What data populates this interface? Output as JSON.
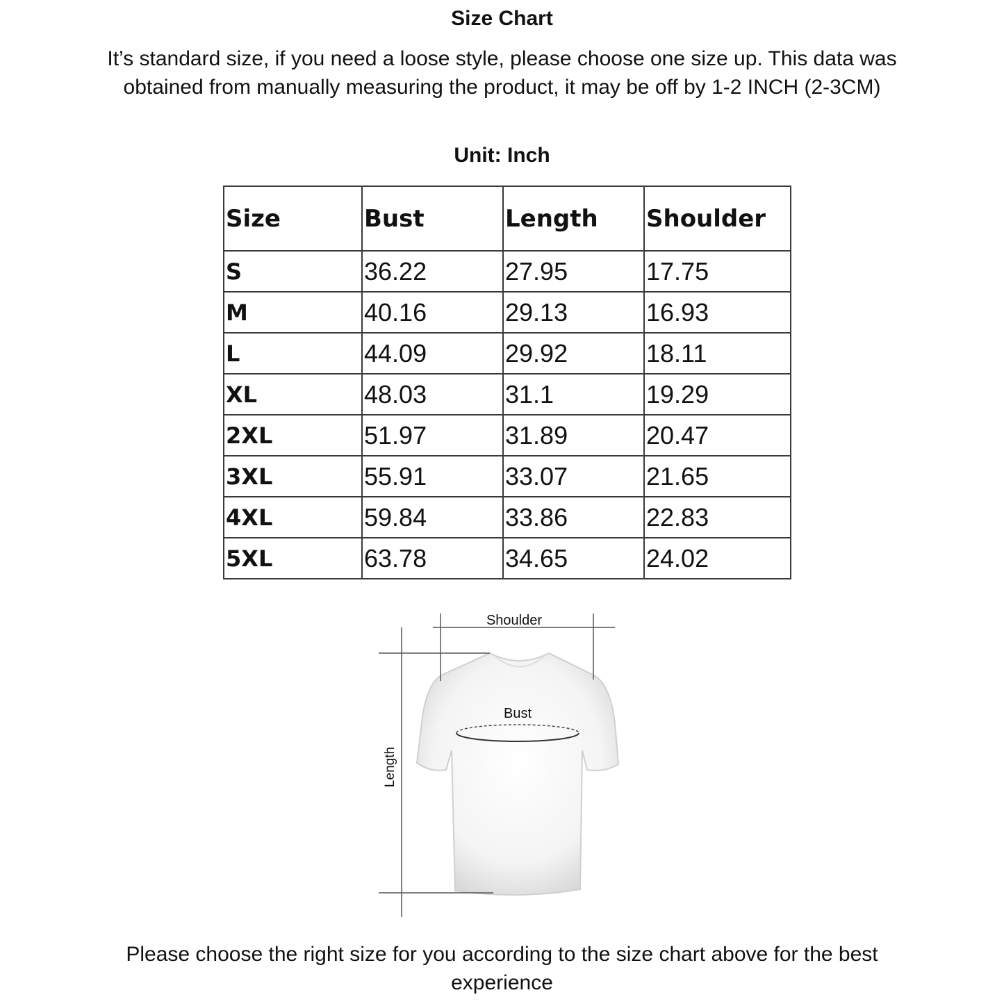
{
  "title": "Size Chart",
  "intro": "It’s standard size, if you need a loose style, please choose one size up. This data was obtained from manually measuring the product, it may be off by 1-2 INCH (2-3CM)",
  "unit": "Unit: Inch",
  "table": {
    "headers": [
      "Size",
      "Bust",
      "Length",
      "Shoulder"
    ],
    "rows": [
      [
        "S",
        "36.22",
        "27.95",
        "17.75"
      ],
      [
        "M",
        "40.16",
        "29.13",
        "16.93"
      ],
      [
        "L",
        "44.09",
        "29.92",
        "18.11"
      ],
      [
        "XL",
        "48.03",
        "31.1",
        "19.29"
      ],
      [
        "2XL",
        "51.97",
        "31.89",
        "20.47"
      ],
      [
        "3XL",
        "55.91",
        "33.07",
        "21.65"
      ],
      [
        "4XL",
        "59.84",
        "33.86",
        "22.83"
      ],
      [
        "5XL",
        "63.78",
        "34.65",
        "24.02"
      ]
    ]
  },
  "diagram": {
    "shoulder_label": "Shoulder",
    "bust_label": "Bust",
    "length_label": "Length"
  },
  "footer": "Please choose the right size for you according to the size chart above for the best experience"
}
